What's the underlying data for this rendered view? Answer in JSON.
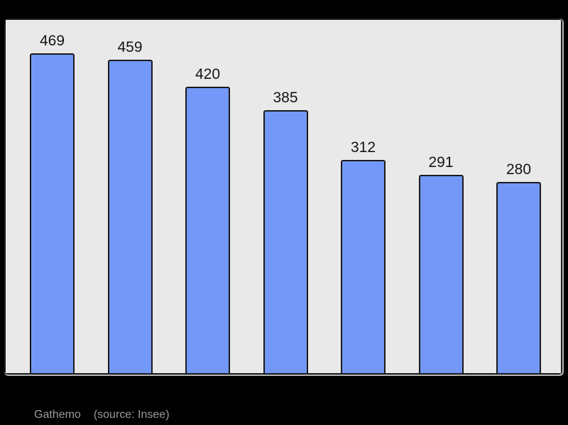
{
  "page": {
    "background_color": "#000000"
  },
  "chart_data": {
    "type": "bar",
    "values": [
      469,
      459,
      420,
      385,
      312,
      291,
      280
    ],
    "data_labels": [
      "469",
      "459",
      "420",
      "385",
      "312",
      "291",
      "280"
    ],
    "categories": [
      "",
      "",
      "",
      "",
      "",
      "",
      ""
    ],
    "title": "",
    "xlabel": "",
    "ylabel": "",
    "ylim": [
      0,
      500
    ],
    "grid": false,
    "legend": null,
    "bar_color": "#7398f8",
    "bar_border_color": "#1a1a1a",
    "plot_background": "#e9e9e9",
    "label_color": "#151515"
  },
  "caption": {
    "location": "Gathemo",
    "source": "(source: Insee)",
    "color": "#9a9a9a"
  }
}
